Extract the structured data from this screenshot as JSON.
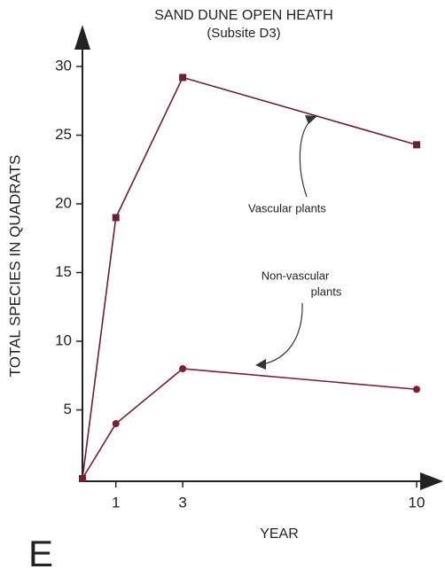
{
  "chart_data": {
    "type": "line",
    "title": "SAND DUNE OPEN HEATH",
    "subtitle": "(Subsite D3)",
    "panel_label": "E",
    "x_label": "YEAR",
    "y_label": "TOTAL SPECIES IN QUADRATS",
    "x": [
      0,
      1,
      3,
      10
    ],
    "series": [
      {
        "name": "Vascular plants",
        "color": "#6b1e34",
        "marker": "square",
        "values": [
          0,
          19,
          29.2,
          24.3
        ]
      },
      {
        "name": "Non-vascular plants",
        "color": "#7a1f30",
        "marker": "circle",
        "values": [
          0,
          4,
          8,
          6.5
        ]
      }
    ],
    "annotations": [
      "Vascular plants",
      "Non-vascular",
      "plants"
    ],
    "xlim": [
      0,
      10
    ],
    "ylim": [
      0,
      30
    ],
    "xticks": [
      1,
      3,
      10
    ],
    "yticks": [
      5,
      10,
      15,
      20,
      25,
      30
    ]
  }
}
